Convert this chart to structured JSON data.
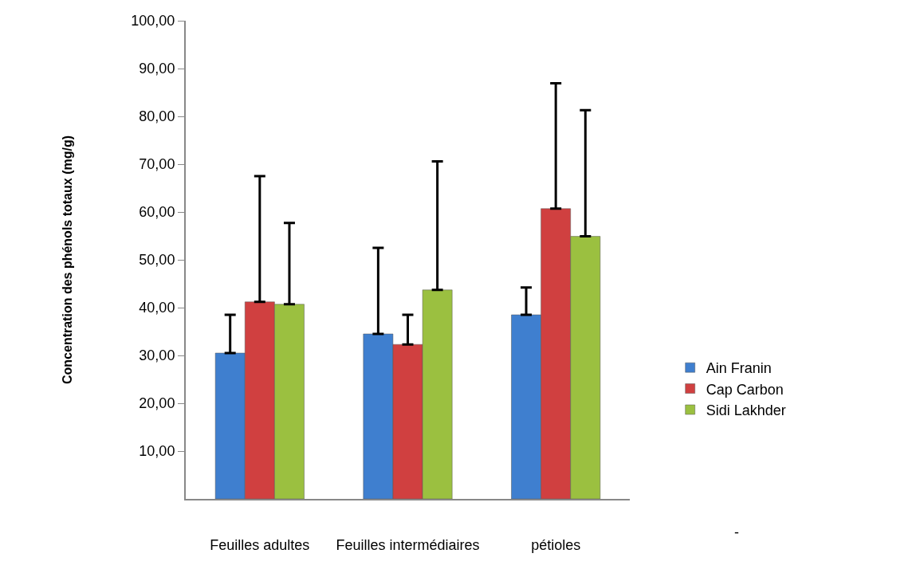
{
  "chart_data": {
    "type": "bar",
    "ylabel": "Concentration des phénols totaux (mg/g)",
    "categories": [
      "Feuilles adultes",
      "Feuilles intermédiaires",
      "pétioles"
    ],
    "series": [
      {
        "name": "Ain Franin",
        "color": "#3f7fcf",
        "values": [
          30.5,
          34.5,
          38.5
        ],
        "errors": [
          [
            30.5,
            38.5
          ],
          [
            34.5,
            52.5
          ],
          [
            38.5,
            44.2
          ]
        ]
      },
      {
        "name": "Cap Carbon",
        "color": "#d04040",
        "values": [
          41.2,
          32.3,
          60.7
        ],
        "errors": [
          [
            41.2,
            67.5
          ],
          [
            32.3,
            38.5
          ],
          [
            60.7,
            86.9
          ]
        ]
      },
      {
        "name": "Sidi Lakhder",
        "color": "#9bc040",
        "values": [
          40.7,
          43.7,
          54.9
        ],
        "errors": [
          [
            40.7,
            57.7
          ],
          [
            43.7,
            70.6
          ],
          [
            54.9,
            81.3
          ]
        ]
      }
    ],
    "ylim": [
      0,
      100
    ],
    "yticks": [
      {
        "value": 10,
        "label": "10,00"
      },
      {
        "value": 20,
        "label": "20,00"
      },
      {
        "value": 30,
        "label": "30,00"
      },
      {
        "value": 40,
        "label": "40,00"
      },
      {
        "value": 50,
        "label": "50,00"
      },
      {
        "value": 60,
        "label": "60,00"
      },
      {
        "value": 70,
        "label": "70,00"
      },
      {
        "value": 80,
        "label": "80,00"
      },
      {
        "value": 90,
        "label": "90,00"
      },
      {
        "value": 100,
        "label": "100,00"
      }
    ],
    "annotations": [
      "-"
    ],
    "legend": "right"
  }
}
